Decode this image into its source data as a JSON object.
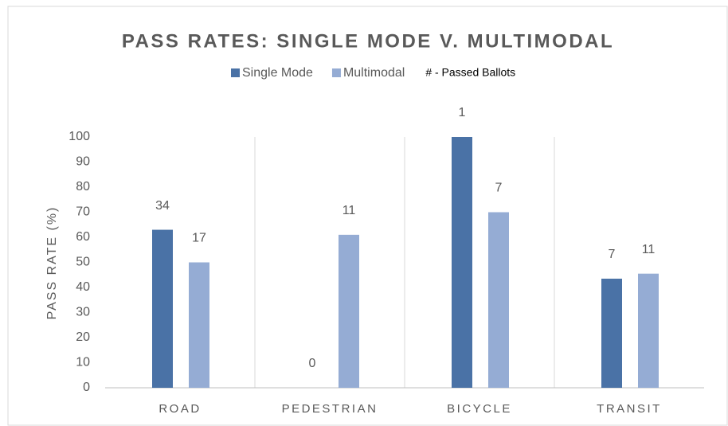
{
  "chart_data": {
    "type": "bar",
    "title": "PASS RATES: SINGLE MODE V. MULTIMODAL",
    "y_label": "PASS RATE (%)",
    "note": "# - Passed Ballots",
    "categories": [
      "ROAD",
      "PEDESTRIAN",
      "BICYCLE",
      "TRANSIT"
    ],
    "series": [
      {
        "name": "Single Mode",
        "color": "#4a72a6",
        "values": [
          63,
          0,
          100,
          43.5
        ],
        "passed_ballots": [
          34,
          0,
          1,
          7
        ]
      },
      {
        "name": "Multimodal",
        "color": "#95acd4",
        "values": [
          50,
          61,
          70,
          45.5
        ],
        "passed_ballots": [
          17,
          11,
          7,
          11
        ]
      }
    ],
    "ylim": [
      0,
      100
    ],
    "yticks": [
      0,
      10,
      20,
      30,
      40,
      50,
      60,
      70,
      80,
      90,
      100
    ],
    "legend": "top"
  }
}
